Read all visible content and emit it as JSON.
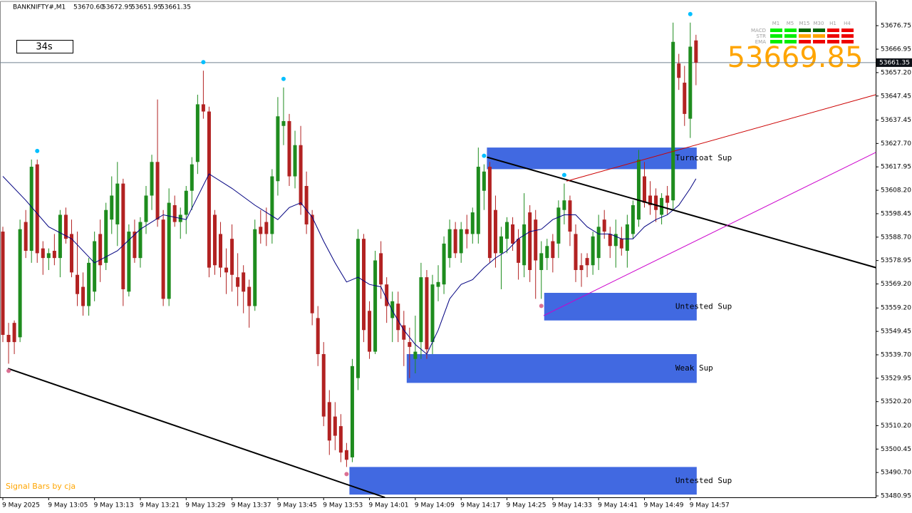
{
  "chart_data": {
    "type": "candlestick",
    "header": {
      "symbol": "BANKNIFTY#,M1",
      "ohlc": [
        "53670.60",
        "53672.95",
        "53651.95",
        "53661.35"
      ]
    },
    "timer": "34s",
    "footer": "Signal Bars by cja",
    "up_color": "#1e8c1e",
    "down_color": "#b22222",
    "ylim": [
      53480.36,
      53687.43
    ],
    "yticks": [
      53676.75,
      53666.95,
      {
        "value": 53657.2,
        "label": "53657.20"
      },
      53647.45,
      53637.45,
      {
        "value": 53627.7,
        "label": "53627.70"
      },
      53617.95,
      {
        "value": 53608.2,
        "label": "53608.20"
      },
      53598.45,
      {
        "value": 53588.7,
        "label": "53588.70"
      },
      53578.95,
      {
        "value": 53569.2,
        "label": "53569.20"
      },
      {
        "value": 53559.2,
        "label": "53559.20"
      },
      53549.45,
      {
        "value": 53539.7,
        "label": "53539.70"
      },
      53529.95,
      {
        "value": 53520.2,
        "label": "53520.20"
      },
      {
        "value": 53510.2,
        "label": "53510.20"
      },
      53500.45,
      {
        "value": 53490.7,
        "label": "53490.70"
      },
      53480.95
    ],
    "price_line": {
      "value": 53661.35,
      "label": "53661.35"
    },
    "categories": [
      "9 May 2025",
      null,
      null,
      null,
      null,
      null,
      null,
      null,
      "9 May 13:05",
      null,
      null,
      null,
      null,
      null,
      null,
      null,
      "9 May 13:13",
      null,
      null,
      null,
      null,
      null,
      null,
      null,
      "9 May 13:21",
      null,
      null,
      null,
      null,
      null,
      null,
      null,
      "9 May 13:29",
      null,
      null,
      null,
      null,
      null,
      null,
      null,
      "9 May 13:37",
      null,
      null,
      null,
      null,
      null,
      null,
      null,
      "9 May 13:45",
      null,
      null,
      null,
      null,
      null,
      null,
      null,
      "9 May 13:53",
      null,
      null,
      null,
      null,
      null,
      null,
      null,
      "9 May 14:01",
      null,
      null,
      null,
      null,
      null,
      null,
      null,
      "9 May 14:09",
      null,
      null,
      null,
      null,
      null,
      null,
      null,
      "9 May 14:17",
      null,
      null,
      null,
      null,
      null,
      null,
      null,
      "9 May 14:25",
      null,
      null,
      null,
      null,
      null,
      null,
      null,
      "9 May 14:33",
      null,
      null,
      null,
      null,
      null,
      null,
      null,
      "9 May 14:41",
      null,
      null,
      null,
      null,
      null,
      null,
      null,
      "9 May 14:49",
      null,
      null,
      null,
      null,
      null,
      null,
      null,
      "9 May 14:57",
      null
    ],
    "candles": [
      [
        53591,
        53593,
        53545,
        53548
      ],
      [
        53548,
        53553,
        53536,
        53545
      ],
      [
        53553,
        53554,
        53540,
        53545
      ],
      [
        53547,
        53596,
        53545,
        53592
      ],
      [
        53595,
        53600,
        53580,
        53583
      ],
      [
        53583,
        53621,
        53578,
        53618
      ],
      [
        53619,
        53621,
        53578,
        53582
      ],
      [
        53584,
        53587,
        53573,
        53580
      ],
      [
        53580,
        53584,
        53575,
        53582
      ],
      [
        53583,
        53590,
        53577,
        53580
      ],
      [
        53580,
        53600,
        53572,
        53598
      ],
      [
        53598,
        53601,
        53586,
        53588
      ],
      [
        53590,
        53596,
        53572,
        53574
      ],
      [
        53573,
        53591,
        53560,
        53565
      ],
      [
        53568,
        53574,
        53556,
        53560
      ],
      [
        53560,
        53580,
        53556,
        53578
      ],
      [
        53566,
        53591,
        53562,
        53587
      ],
      [
        53590,
        53596,
        53570,
        53577
      ],
      [
        53578,
        53603,
        53575,
        53600
      ],
      [
        53596,
        53614,
        53590,
        53606
      ],
      [
        53594,
        53620,
        53585,
        53611
      ],
      [
        53611,
        53613,
        53560,
        53567
      ],
      [
        53566,
        53594,
        53564,
        53591
      ],
      [
        53591,
        53596,
        53578,
        53580
      ],
      [
        53580,
        53597,
        53576,
        53595
      ],
      [
        53595,
        53610,
        53590,
        53606
      ],
      [
        53606,
        53623,
        53600,
        53620
      ],
      [
        53620,
        53646,
        53593,
        53596
      ],
      [
        53596,
        53600,
        53560,
        53563
      ],
      [
        53563,
        53609,
        53560,
        53603
      ],
      [
        53602,
        53606,
        53593,
        53595
      ],
      [
        53595,
        53601,
        53588,
        53598
      ],
      [
        53598,
        53610,
        53590,
        53608
      ],
      [
        53608,
        53622,
        53600,
        53619
      ],
      [
        53620,
        53648,
        53615,
        53644
      ],
      [
        53644,
        53658,
        53638,
        53641
      ],
      [
        53641,
        53643,
        53572,
        53576
      ],
      [
        53598,
        53600,
        53573,
        53577
      ],
      [
        53590,
        53595,
        53572,
        53576
      ],
      [
        53576,
        53584,
        53565,
        53574
      ],
      [
        53588,
        53594,
        53566,
        53573
      ],
      [
        53572,
        53582,
        53560,
        53568
      ],
      [
        53574,
        53577,
        53557,
        53566
      ],
      [
        53568,
        53571,
        53551,
        53560
      ],
      [
        53560,
        53596,
        53558,
        53592
      ],
      [
        53593,
        53600,
        53586,
        53590
      ],
      [
        53595,
        53601,
        53585,
        53590
      ],
      [
        53590,
        53617,
        53586,
        53614
      ],
      [
        53612,
        53647,
        53606,
        53639
      ],
      [
        53635,
        53651,
        53627,
        53637
      ],
      [
        53637,
        53640,
        53610,
        53614
      ],
      [
        53614,
        53633,
        53609,
        53627
      ],
      [
        53627,
        53635,
        53598,
        53602
      ],
      [
        53610,
        53616,
        53590,
        53594
      ],
      [
        53598,
        53600,
        53552,
        53557
      ],
      [
        53555,
        53560,
        53535,
        53540
      ],
      [
        53540,
        53545,
        53510,
        53514
      ],
      [
        53520,
        53525,
        53498,
        53504
      ],
      [
        53514,
        53520,
        53500,
        53506
      ],
      [
        53510,
        53515,
        53495,
        53499
      ],
      [
        53500,
        53503,
        53493,
        53496
      ],
      [
        53497,
        53538,
        53495,
        53535
      ],
      [
        53530,
        53592,
        53525,
        53588
      ],
      [
        53588,
        53590,
        53545,
        53550
      ],
      [
        53558,
        53562,
        53538,
        53541
      ],
      [
        53541,
        53583,
        53540,
        53579
      ],
      [
        53582,
        53587,
        53563,
        53569
      ],
      [
        53569,
        53572,
        53553,
        53560
      ],
      [
        53555,
        53566,
        53545,
        53562
      ],
      [
        53561,
        53566,
        53545,
        53550
      ],
      [
        53552,
        53558,
        53535,
        53546
      ],
      [
        53545,
        53551,
        53530,
        53543
      ],
      [
        53538,
        53556,
        53532,
        53541
      ],
      [
        53545,
        53578,
        53538,
        53572
      ],
      [
        53572,
        53575,
        53538,
        53542
      ],
      [
        53545,
        53573,
        53540,
        53569
      ],
      [
        53568,
        53577,
        53562,
        53570
      ],
      [
        53569,
        53589,
        53565,
        53586
      ],
      [
        53580,
        53596,
        53576,
        53592
      ],
      [
        53592,
        53595,
        53580,
        53582
      ],
      [
        53582,
        53595,
        53578,
        53592
      ],
      [
        53592,
        53598,
        53584,
        53590
      ],
      [
        53590,
        53601,
        53586,
        53599
      ],
      [
        53590,
        53626,
        53586,
        53618
      ],
      [
        53608,
        53619,
        53600,
        53616
      ],
      [
        53618,
        53620,
        53578,
        53580
      ],
      [
        53600,
        53606,
        53576,
        53582
      ],
      [
        53582,
        53593,
        53567,
        53589
      ],
      [
        53588,
        53597,
        53582,
        53595
      ],
      [
        53594,
        53597,
        53583,
        53586
      ],
      [
        53588,
        53592,
        53571,
        53578
      ],
      [
        53577,
        53607,
        53572,
        53594
      ],
      [
        53599,
        53602,
        53570,
        53575
      ],
      [
        53596,
        53600,
        53563,
        53579
      ],
      [
        53575,
        53587,
        53563,
        53582
      ],
      [
        53580,
        53588,
        53575,
        53585
      ],
      [
        53587,
        53590,
        53574,
        53580
      ],
      [
        53586,
        53604,
        53580,
        53601
      ],
      [
        53600,
        53611,
        53594,
        53604
      ],
      [
        53604,
        53606,
        53585,
        53591
      ],
      [
        53590,
        53594,
        53570,
        53575
      ],
      [
        53577,
        53582,
        53568,
        53575
      ],
      [
        53580,
        53582,
        53572,
        53577
      ],
      [
        53577,
        53591,
        53573,
        53589
      ],
      [
        53580,
        53598,
        53575,
        53593
      ],
      [
        53596,
        53600,
        53588,
        53591
      ],
      [
        53590,
        53593,
        53580,
        53585
      ],
      [
        53585,
        53596,
        53576,
        53590
      ],
      [
        53588,
        53593,
        53581,
        53584
      ],
      [
        53583,
        53598,
        53576,
        53594
      ],
      [
        53590,
        53604,
        53588,
        53602
      ],
      [
        53596,
        53625,
        53593,
        53621
      ],
      [
        53614,
        53620,
        53601,
        53603
      ],
      [
        53606,
        53612,
        53598,
        53602
      ],
      [
        53606,
        53609,
        53595,
        53600
      ],
      [
        53598,
        53607,
        53594,
        53605
      ],
      [
        53606,
        53610,
        53598,
        53603
      ],
      [
        53604,
        53678,
        53600,
        53670
      ],
      [
        53661,
        53665,
        53650,
        53655
      ],
      [
        53653,
        53660,
        53635,
        53640
      ],
      [
        53638,
        53678,
        53630,
        53668
      ],
      [
        53670.6,
        53672.95,
        53651.95,
        53661.35
      ]
    ],
    "ma": {
      "color": "#000080",
      "x": [
        0,
        4,
        8,
        12,
        16,
        20,
        24,
        28,
        32,
        36,
        40,
        44,
        48,
        50,
        52,
        54,
        56,
        58,
        60,
        62,
        64,
        66,
        68,
        70,
        72,
        74,
        76,
        78,
        80,
        82,
        84,
        86,
        88,
        90,
        92,
        94,
        96,
        98,
        100,
        102,
        104,
        106,
        108,
        110,
        112,
        114,
        116,
        118,
        120,
        121
      ],
      "values": [
        53614,
        53604,
        53593,
        53588,
        53578,
        53583,
        53592,
        53598,
        53596,
        53615,
        53609,
        53602,
        53596,
        53601,
        53603,
        53597,
        53587,
        53578,
        53570,
        53572,
        53569,
        53568,
        53558,
        53550,
        53544,
        53540,
        53550,
        53563,
        53569,
        53571,
        53576,
        53580,
        53583,
        53588,
        53591,
        53592,
        53596,
        53598,
        53598,
        53593,
        53590,
        53590,
        53588,
        53588,
        53593,
        53596,
        53598,
        53602,
        53609,
        53613
      ]
    },
    "trendlines": [
      {
        "color": "#000000",
        "x": [
          0.9,
          66.7
        ],
        "values": [
          53534,
          53480.3
        ]
      },
      {
        "color": "#000000",
        "x": [
          84.5,
          152.4
        ],
        "values": [
          53622,
          53576
        ]
      },
      {
        "color": "#cc0000",
        "x": [
          98.4,
          152.4
        ],
        "values": [
          53612,
          53648
        ]
      },
      {
        "color": "#cc00cc",
        "x": [
          94.4,
          152.4
        ],
        "values": [
          53556,
          53624
        ]
      }
    ],
    "zones": [
      {
        "label": "Turncoat Sup",
        "from": 84.5,
        "values": [
          53626,
          53617
        ]
      },
      {
        "label": "Untested Sup",
        "from": 94.5,
        "values": [
          53565.5,
          53554
        ]
      },
      {
        "label": "Weak Sup",
        "from": 70.5,
        "values": [
          53540,
          53528
        ]
      },
      {
        "label": "Untested Sup",
        "from": 60.5,
        "values": [
          53493,
          53481.5
        ]
      }
    ],
    "zone_color": "#4169e1",
    "fractals": {
      "up": [
        6,
        35,
        49,
        84,
        98,
        120
      ],
      "down": [
        1,
        60,
        94
      ],
      "up_color": "#00bfff",
      "down_color": "#db7093"
    },
    "signals": {
      "rows": [
        "MACD",
        "STR",
        "EMA"
      ],
      "columns": [
        "M1",
        "M5",
        "M15",
        "M30",
        "H1",
        "H4"
      ],
      "colors": [
        [
          "#00ee00",
          "#00ee00",
          "#006400",
          "#006400",
          "#ee0000",
          "#ee0000"
        ],
        [
          "#00ee00",
          "#00ee00",
          "#ffa500",
          "#ffa500",
          "#ee0000",
          "#ee0000"
        ],
        [
          "#00ee00",
          "#00ee00",
          "#ee0000",
          "#ee0000",
          "#ee0000",
          "#ee0000"
        ]
      ]
    },
    "big_price": "53669.85"
  }
}
